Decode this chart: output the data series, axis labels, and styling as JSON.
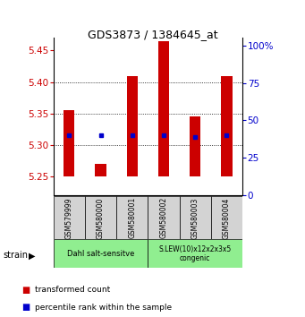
{
  "title": "GDS3873 / 1384645_at",
  "samples": [
    "GSM579999",
    "GSM580000",
    "GSM580001",
    "GSM580002",
    "GSM580003",
    "GSM580004"
  ],
  "bar_color": "#cc0000",
  "dot_color": "#0000cc",
  "bar_bottom": 5.25,
  "bar_tops": [
    5.355,
    5.27,
    5.41,
    5.465,
    5.345,
    5.41
  ],
  "dot_values": [
    5.315,
    5.315,
    5.315,
    5.315,
    5.312,
    5.315
  ],
  "ylim_left": [
    5.22,
    5.47
  ],
  "yticks_left": [
    5.25,
    5.3,
    5.35,
    5.4,
    5.45
  ],
  "ylim_right": [
    0,
    105
  ],
  "yticks_right": [
    0,
    25,
    50,
    75,
    100
  ],
  "ytick_labels_right": [
    "0",
    "25",
    "50",
    "75",
    "100%"
  ],
  "left_color": "#cc0000",
  "right_color": "#0000cc",
  "bar_width": 0.35,
  "grid_yticks": [
    5.3,
    5.35,
    5.4
  ],
  "legend_red_label": "transformed count",
  "legend_blue_label": "percentile rank within the sample",
  "group1_name": "Dahl salt-sensitve",
  "group2_name": "S.LEW(10)x12x2x3x5\ncongenic",
  "group_color": "#90EE90",
  "sample_box_color": "#d3d3d3"
}
